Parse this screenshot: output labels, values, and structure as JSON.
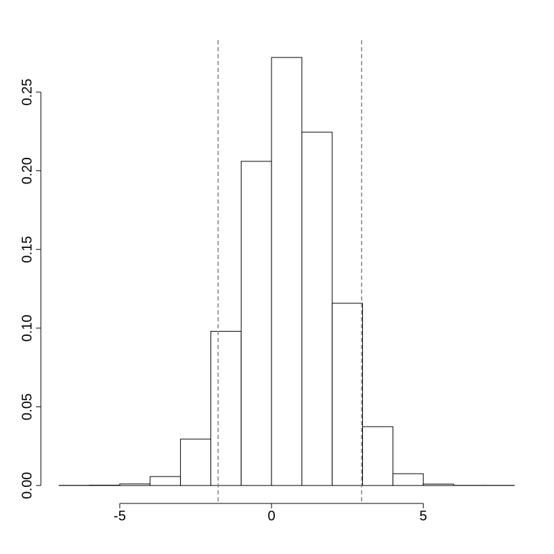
{
  "chart_data": {
    "type": "histogram",
    "bins": [
      -7,
      -6,
      -5,
      -4,
      -3,
      -2,
      -1,
      0,
      1,
      2,
      3,
      4,
      5,
      6,
      7,
      8
    ],
    "values": [
      0.0001,
      0.0002,
      0.001,
      0.0057,
      0.0295,
      0.098,
      0.206,
      0.272,
      0.2245,
      0.1158,
      0.0374,
      0.0075,
      0.0009,
      0.0001,
      0.0001
    ],
    "color": "#ffffff",
    "xlim": [
      -7.6,
      8.6
    ],
    "xticks": [
      -5,
      0,
      5
    ],
    "ylim": [
      -0.0114,
      0.283
    ],
    "yticks": [
      {
        "value": 0,
        "label": "0.00"
      },
      {
        "value": 0.05,
        "label": "0.05"
      },
      {
        "value": 0.1,
        "label": "0.10"
      },
      {
        "value": 0.15,
        "label": "0.15"
      },
      {
        "value": 0.2,
        "label": "0.20"
      },
      {
        "value": 0.25,
        "label": "0.25"
      }
    ],
    "vlines": [
      -1.76,
      2.97
    ],
    "vline_color": "#808080"
  }
}
